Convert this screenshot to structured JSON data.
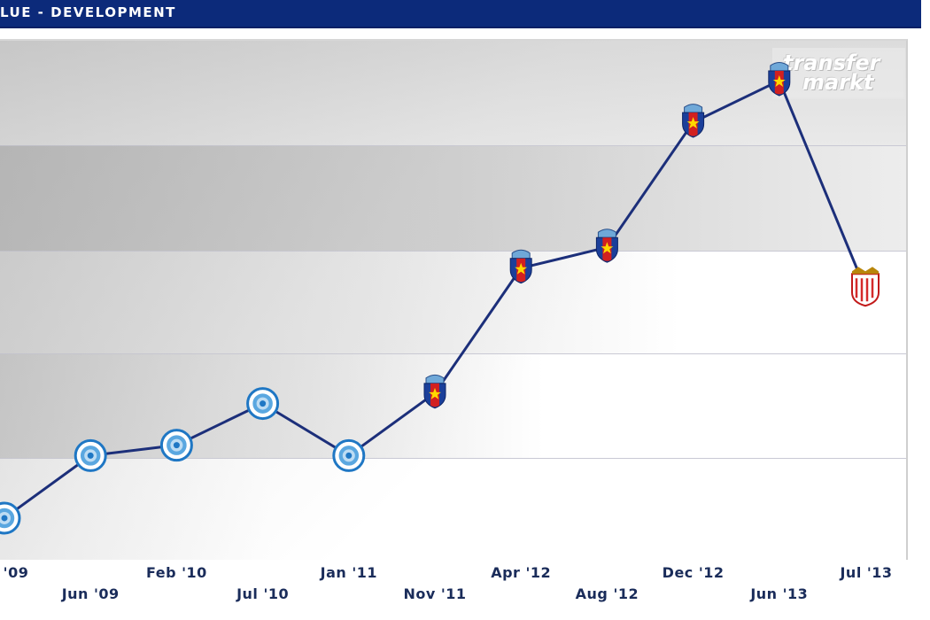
{
  "header": {
    "title": "LUE - DEVELOPMENT"
  },
  "watermark": {
    "line1": "transfer",
    "line2": "markt"
  },
  "colors": {
    "header": "#0c2a7a",
    "line": "#1c2f7a",
    "tick_text": "#1a2c5a"
  },
  "chart_data": {
    "type": "line",
    "title": "",
    "xlabel": "",
    "ylabel": "",
    "x_tick_labels": [
      "'09",
      "Jun '09",
      "Feb '10",
      "Jul '10",
      "Jan '11",
      "Nov '11",
      "Apr '12",
      "Aug '12",
      "Dec '12",
      "Jun '13",
      "Jul '13"
    ],
    "series": [
      {
        "values": [
          0.4,
          1.0,
          1.1,
          1.5,
          1.0,
          1.6,
          2.8,
          3.0,
          4.2,
          4.6,
          2.6
        ],
        "marker_icons": [
          "blue-club-crest",
          "blue-club-crest",
          "blue-club-crest",
          "blue-club-crest",
          "blue-club-crest",
          "steaua-crest",
          "steaua-crest",
          "steaua-crest",
          "steaua-crest",
          "steaua-crest",
          "sevilla-crest"
        ]
      }
    ],
    "grid": true,
    "ylim": [
      0,
      5
    ]
  }
}
